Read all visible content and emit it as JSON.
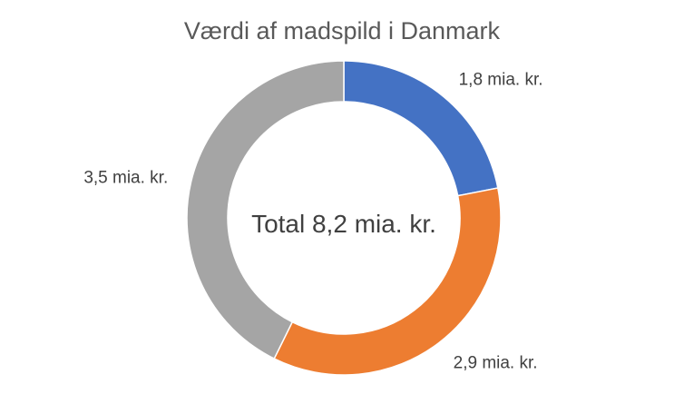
{
  "chart_data": {
    "type": "pie",
    "variant": "doughnut",
    "title": "Værdi af madspild i Danmark",
    "center_label": "Total 8,2 mia. kr.",
    "categories": [
      "",
      "",
      ""
    ],
    "values": [
      1.8,
      2.9,
      3.5
    ],
    "data_labels": [
      "1,8 mia. kr.",
      "2,9 mia. kr.",
      "3,5 mia. kr."
    ],
    "colors": [
      "#4472C4",
      "#ED7D31",
      "#A5A5A5"
    ],
    "legend": "none"
  }
}
